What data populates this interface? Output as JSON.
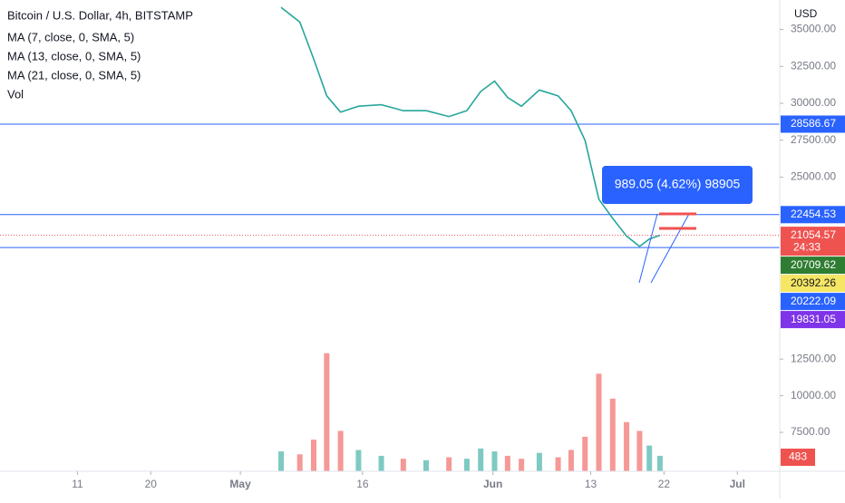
{
  "chart_data": {
    "type": "line",
    "currency": "USD",
    "studies": [
      "MA (7, close, 0, SMA, 5)",
      "MA (13, close, 0, SMA, 5)",
      "MA (21, close, 0, SMA, 5)"
    ],
    "xlim": [
      0.5,
      96.2
    ],
    "xticks": [
      {
        "value": 10,
        "label": "11"
      },
      {
        "value": 19,
        "label": "20"
      },
      {
        "value": 30,
        "label": "May"
      },
      {
        "value": 45,
        "label": "16"
      },
      {
        "value": 61,
        "label": "Jun"
      },
      {
        "value": 73,
        "label": "13"
      },
      {
        "value": 82,
        "label": "22"
      },
      {
        "value": 91,
        "label": "Jul"
      }
    ],
    "ylim": [
      5060,
      37000
    ],
    "yticks": [
      {
        "value": 35000,
        "label": "35000.00"
      },
      {
        "value": 32500,
        "label": "32500.00"
      },
      {
        "value": 30000,
        "label": "30000.00"
      },
      {
        "value": 27500,
        "label": "27500.00"
      },
      {
        "value": 25000,
        "label": "25000.00"
      }
    ],
    "y2lim": [
      5000,
      13500
    ],
    "y2ticks": [
      {
        "value": 12500,
        "label": "12500.00"
      },
      {
        "value": 10000,
        "label": "10000.00"
      },
      {
        "value": 7500,
        "label": "7500.00"
      }
    ],
    "series": [
      {
        "name": "Bitcoin / U.S. Dollar, 4h, BITSTAMP",
        "color": "#26a69a",
        "x": [
          35,
          37.3,
          39,
          40.6,
          42.3,
          44.5,
          47.3,
          50,
          52.8,
          55.6,
          57.8,
          59.5,
          61.2,
          62.8,
          64.5,
          66.7,
          69,
          70.6,
          72.3,
          74,
          75.7,
          77.4,
          79,
          80.2,
          81.5
        ],
        "values": [
          36500,
          35500,
          33000,
          30500,
          29400,
          29800,
          29900,
          29500,
          29500,
          29100,
          29500,
          30800,
          31500,
          30400,
          29800,
          30900,
          30500,
          29500,
          27500,
          23500,
          22200,
          21000,
          20300,
          20800,
          21054.57
        ]
      },
      {
        "name": "Vol",
        "axis": "y2",
        "color": "#ef5350",
        "x": [
          35,
          37.3,
          39,
          40.6,
          42.3,
          44.5,
          47.3,
          50,
          52.8,
          55.6,
          57.8,
          59.5,
          61.2,
          62.8,
          64.5,
          66.7,
          69,
          70.6,
          72.3,
          74,
          75.7,
          77.4,
          79,
          80.2,
          81.5
        ],
        "values": [
          6200,
          6000,
          7000,
          12900,
          7600,
          6300,
          5900,
          5700,
          5600,
          5800,
          5700,
          6400,
          6200,
          5900,
          5700,
          6100,
          5800,
          6300,
          7200,
          11500,
          9800,
          8200,
          7600,
          6600,
          5900
        ]
      }
    ],
    "price_lines": [
      {
        "value": 28586.67,
        "color": "#2962ff"
      },
      {
        "value": 22454.53,
        "color": "#2962ff"
      },
      {
        "value": 20222.09,
        "color": "#2962ff"
      }
    ],
    "price_labels": [
      {
        "value": 28586.67,
        "color": "#2962ff"
      },
      {
        "value": 22454.53,
        "color": "#2962ff"
      },
      {
        "value": 21054.57,
        "color": "#ef5350",
        "countdown": "24:33"
      },
      {
        "value": 20709.62,
        "color": "#2e7d32"
      },
      {
        "value": 20392.26,
        "color": "#f5e663"
      },
      {
        "value": 20222.09,
        "color": "#2962ff"
      },
      {
        "value": 19831.05,
        "color": "#7e34e8"
      }
    ],
    "volume_label": {
      "value": 483,
      "color": "#ef5350"
    },
    "measure": "989.05 (4.62%) 98905",
    "grid": false
  }
}
